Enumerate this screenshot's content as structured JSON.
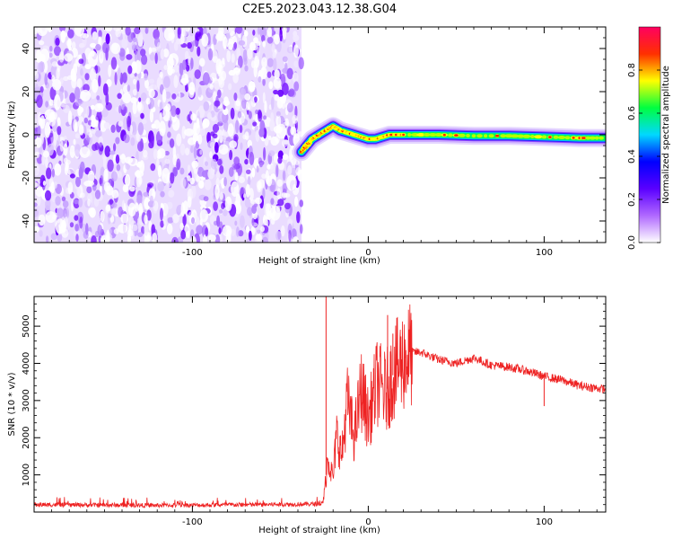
{
  "title": "C2E5.2023.043.12.38.G04",
  "chart_data": [
    {
      "type": "heatmap",
      "xlabel": "Height of straight line (km)",
      "ylabel": "Frequency (Hz)",
      "xlim": [
        -190,
        135
      ],
      "ylim": [
        -50,
        50
      ],
      "xticks": [
        -100,
        0,
        100
      ],
      "yticks": [
        -40,
        -20,
        0,
        20,
        40
      ],
      "noise_region_x": [
        -190,
        -38
      ],
      "signal_trace": {
        "x": [
          -38,
          -35,
          -32,
          -28,
          -24,
          -20,
          -16,
          -12,
          -8,
          -4,
          0,
          4,
          8,
          12,
          20,
          40,
          60,
          80,
          100,
          120,
          135
        ],
        "y": [
          -8,
          -5,
          -2,
          0,
          2,
          4,
          2,
          1,
          0,
          -1,
          -2,
          -2,
          -1,
          0,
          0,
          0,
          -0.5,
          -0.5,
          -1,
          -1.5,
          -1.5
        ]
      },
      "colorbar": {
        "label": "Normalized spectral amplitude",
        "range": [
          0,
          1
        ],
        "ticks": [
          "0.0",
          "0.2",
          "0.4",
          "0.6",
          "0.8"
        ],
        "colors": [
          "#ffffff",
          "#b068ff",
          "#5a00ff",
          "#0000ff",
          "#00d8ff",
          "#00ff40",
          "#ffff00",
          "#ff3000",
          "#ff0060"
        ]
      }
    },
    {
      "type": "line",
      "xlabel": "Height of straight line (km)",
      "ylabel": "SNR (10 * v/v)",
      "xlim": [
        -190,
        135
      ],
      "ylim": [
        0,
        5800
      ],
      "xticks": [
        -100,
        0,
        100
      ],
      "yticks": [
        1000,
        2000,
        3000,
        4000,
        5000
      ],
      "color": "#ee2222",
      "envelope": {
        "x": [
          -190,
          -120,
          -60,
          -26,
          -25,
          -23,
          -20,
          -18,
          -15,
          -12,
          -8,
          -4,
          0,
          5,
          10,
          15,
          20,
          25,
          30,
          40,
          50,
          60,
          70,
          80,
          90,
          100,
          110,
          120,
          135
        ],
        "y": [
          200,
          180,
          200,
          220,
          500,
          1500,
          900,
          2100,
          1500,
          3000,
          2000,
          3300,
          2500,
          3500,
          3200,
          3800,
          4100,
          4300,
          4300,
          4100,
          4000,
          4150,
          3950,
          3900,
          3800,
          3650,
          3550,
          3400,
          3300
        ]
      },
      "spikes": [
        {
          "x": -24,
          "y": 5800
        },
        {
          "x": 11,
          "y": 5300
        },
        {
          "x": 14,
          "y": 4800
        },
        {
          "x": 100,
          "y": 2850
        }
      ]
    }
  ]
}
